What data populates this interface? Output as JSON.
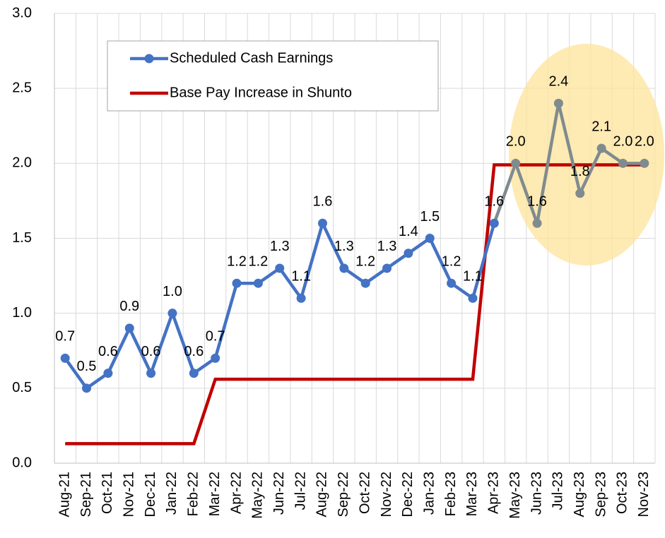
{
  "chart_data": {
    "type": "line",
    "categories": [
      "Aug-21",
      "Sep-21",
      "Oct-21",
      "Nov-21",
      "Dec-21",
      "Jan-22",
      "Feb-22",
      "Mar-22",
      "Apr-22",
      "May-22",
      "Jun-22",
      "Jul-22",
      "Aug-22",
      "Sep-22",
      "Oct-22",
      "Nov-22",
      "Dec-22",
      "Jan-23",
      "Feb-23",
      "Mar-23",
      "Apr-23",
      "May-23",
      "Jun-23",
      "Jul-23",
      "Aug-23",
      "Sep-23",
      "Oct-23",
      "Nov-23"
    ],
    "series": [
      {
        "name": "Scheduled Cash Earnings",
        "color": "#4472c4",
        "point_colors": [
          "#4472c4",
          "#4472c4",
          "#4472c4",
          "#4472c4",
          "#4472c4",
          "#4472c4",
          "#4472c4",
          "#4472c4",
          "#4472c4",
          "#4472c4",
          "#4472c4",
          "#4472c4",
          "#4472c4",
          "#4472c4",
          "#4472c4",
          "#4472c4",
          "#4472c4",
          "#4472c4",
          "#4472c4",
          "#4472c4",
          "#4472c4",
          "#808b8f",
          "#808b8f",
          "#808b8f",
          "#808b8f",
          "#808b8f",
          "#808b8f",
          "#808b8f"
        ],
        "markers": true,
        "values": [
          0.7,
          0.5,
          0.6,
          0.9,
          0.6,
          1.0,
          0.6,
          0.7,
          1.2,
          1.2,
          1.3,
          1.1,
          1.6,
          1.3,
          1.2,
          1.3,
          1.4,
          1.5,
          1.2,
          1.1,
          1.6,
          2.0,
          1.6,
          2.4,
          1.8,
          2.1,
          2.0,
          2.0
        ],
        "value_labels": [
          "0.7",
          "0.5",
          "0.6",
          "0.9",
          "0.6",
          "1.0",
          "0.6",
          "0.7",
          "1.2",
          "1.2",
          "1.3",
          "1.1",
          "1.6",
          "1.3",
          "1.2",
          "1.3",
          "1.4",
          "1.5",
          "1.2",
          "1.1",
          "1.6",
          "2.0",
          "1.6",
          "2.4",
          "1.8",
          "2.1",
          "2.0",
          "2.0"
        ]
      },
      {
        "name": "Base Pay Increase in Shunto",
        "color": "#c00000",
        "markers": false,
        "values": [
          0.13,
          0.13,
          0.13,
          0.13,
          0.13,
          0.13,
          0.13,
          0.56,
          0.56,
          0.56,
          0.56,
          0.56,
          0.56,
          0.56,
          0.56,
          0.56,
          0.56,
          0.56,
          0.56,
          0.56,
          1.99,
          1.99,
          1.99,
          1.99,
          1.99,
          1.99,
          1.99,
          1.99
        ]
      }
    ],
    "ylim": [
      0,
      3
    ],
    "yticks": [
      {
        "value": 0,
        "label": "0.0"
      },
      0.5,
      {
        "value": 1,
        "label": "1.0"
      },
      1.5,
      {
        "value": 2,
        "label": "2.0"
      },
      2.5,
      {
        "value": 3,
        "label": "3.0"
      }
    ],
    "grid": true,
    "legend": "upper left"
  }
}
